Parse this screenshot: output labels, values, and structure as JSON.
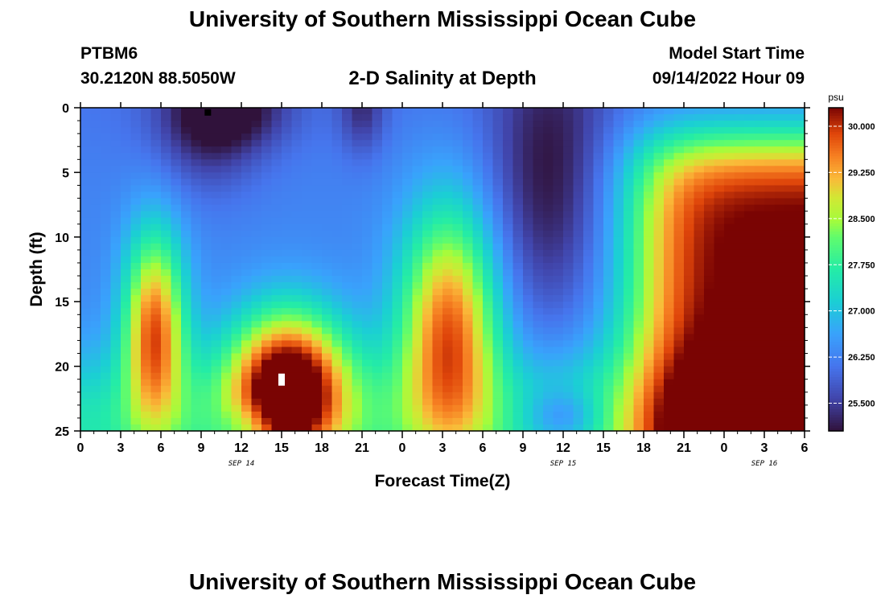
{
  "header": {
    "title": "University of Southern Mississippi Ocean Cube",
    "station": "PTBM6",
    "coords": "30.2120N  88.5050W",
    "subtitle": "2-D Salinity at Depth",
    "model_start_label": "Model Start Time",
    "model_start_value": "09/14/2022 Hour 09"
  },
  "footer": {
    "title": "University of Southern Mississippi Ocean Cube"
  },
  "chart_data": {
    "type": "heatmap",
    "title": "2-D Salinity at Depth",
    "xlabel": "Forecast Time(Z)",
    "ylabel": "Depth (ft)",
    "x_tick_labels": [
      "0",
      "3",
      "6",
      "9",
      "12",
      "15",
      "18",
      "21",
      "0",
      "3",
      "6",
      "9",
      "12",
      "15",
      "18",
      "21",
      "0",
      "3",
      "6"
    ],
    "x_range_hours": [
      0,
      54
    ],
    "date_labels": [
      {
        "hour": 12,
        "label": "SEP 14"
      },
      {
        "hour": 36,
        "label": "SEP 15"
      },
      {
        "hour": 51,
        "label": "SEP 16"
      }
    ],
    "y_tick_labels": [
      "0",
      "5",
      "10",
      "15",
      "20",
      "25"
    ],
    "y_range_ft": [
      0,
      25
    ],
    "colorbar": {
      "unit": "psu",
      "range": [
        25.05,
        30.3
      ],
      "tick_values": [
        25.5,
        26.25,
        27.0,
        27.75,
        28.5,
        29.25,
        30.0
      ],
      "tick_labels": [
        "25.500",
        "26.250",
        "27.000",
        "27.750",
        "28.500",
        "29.250",
        "30.000"
      ]
    },
    "value_range": [
      25.05,
      30.3
    ],
    "minimum_marker": {
      "hour": 9.5,
      "depth_ft": 0.3
    },
    "maximum_marker": {
      "hour": 15,
      "depth_ft": 21
    },
    "features": [
      {
        "description": "low salinity upper layer",
        "hours": [
          0,
          12
        ],
        "depth_ft": [
          0,
          8
        ],
        "value_psu": 26.2
      },
      {
        "description": "high salinity core",
        "hours": [
          4,
          7
        ],
        "depth_ft": [
          12,
          22
        ],
        "value_psu": 29.6
      },
      {
        "description": "maximum salinity core",
        "hours": [
          10,
          21
        ],
        "depth_ft": [
          16,
          25
        ],
        "value_psu": 30.3
      },
      {
        "description": "high salinity core",
        "hours": [
          26,
          31
        ],
        "depth_ft": [
          12,
          25
        ],
        "value_psu": 29.6
      },
      {
        "description": "low salinity column",
        "hours": [
          31,
          40
        ],
        "depth_ft": [
          0,
          20
        ],
        "value_psu": 26.0
      },
      {
        "description": "high salinity body",
        "hours": [
          38,
          54
        ],
        "depth_ft": [
          3,
          25
        ],
        "value_psu": 30.2
      }
    ]
  }
}
